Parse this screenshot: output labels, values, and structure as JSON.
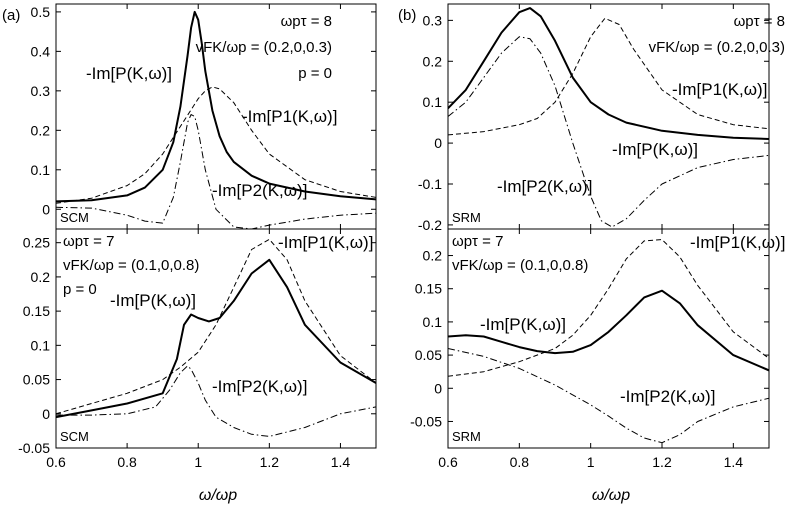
{
  "figure_labels": [
    "(a)",
    "(b)"
  ],
  "xlabel": "ω/ωp",
  "chart_data": [
    {
      "type": "line",
      "id": "a-top",
      "model": "SCM",
      "xlim": [
        0.6,
        1.5
      ],
      "ylim": [
        -0.05,
        0.52
      ],
      "xticks": [
        0.6,
        0.8,
        1,
        1.2,
        1.4
      ],
      "xtick_labels": [
        "",
        "",
        "",
        "",
        ""
      ],
      "yticks": [
        0,
        0.1,
        0.2,
        0.3,
        0.4,
        0.5
      ],
      "ytick_labels": [
        "0",
        "0.1",
        "0.2",
        "0.3",
        "0.4",
        "0.5"
      ],
      "params": [
        "ωpτ = 8",
        "vFK/ωp = (0.2,0,0.3)",
        "p = 0"
      ],
      "series": [
        {
          "name": "-Im[P(K,ω)]",
          "style": "solid",
          "x": [
            0.6,
            0.7,
            0.8,
            0.85,
            0.9,
            0.93,
            0.95,
            0.97,
            0.98,
            0.99,
            1.0,
            1.01,
            1.02,
            1.04,
            1.06,
            1.08,
            1.1,
            1.15,
            1.2,
            1.3,
            1.4,
            1.5
          ],
          "y": [
            0.02,
            0.023,
            0.035,
            0.055,
            0.1,
            0.17,
            0.26,
            0.39,
            0.46,
            0.5,
            0.48,
            0.42,
            0.35,
            0.25,
            0.185,
            0.145,
            0.12,
            0.085,
            0.065,
            0.045,
            0.033,
            0.025
          ]
        },
        {
          "name": "-Im[P1(K,ω)]",
          "style": "dashed",
          "x": [
            0.6,
            0.7,
            0.8,
            0.85,
            0.9,
            0.95,
            1.0,
            1.02,
            1.04,
            1.06,
            1.1,
            1.15,
            1.2,
            1.3,
            1.4,
            1.5
          ],
          "y": [
            0.015,
            0.028,
            0.06,
            0.09,
            0.14,
            0.21,
            0.28,
            0.3,
            0.31,
            0.305,
            0.27,
            0.2,
            0.14,
            0.075,
            0.045,
            0.03
          ]
        },
        {
          "name": "-Im[P2(K,ω)]",
          "style": "dashdot",
          "x": [
            0.6,
            0.7,
            0.8,
            0.85,
            0.9,
            0.93,
            0.95,
            0.97,
            0.98,
            0.99,
            1.0,
            1.02,
            1.05,
            1.1,
            1.15,
            1.2,
            1.3,
            1.4,
            1.5
          ],
          "y": [
            0.005,
            0.003,
            -0.015,
            -0.03,
            -0.035,
            0.03,
            0.12,
            0.22,
            0.24,
            0.235,
            0.2,
            0.1,
            0.0,
            -0.045,
            -0.05,
            -0.04,
            -0.025,
            -0.015,
            -0.01
          ]
        }
      ],
      "annotations": [
        "-Im[P(K,ω)]",
        "-Im[P1(K,ω)]",
        "-Im[P2(K,ω)]"
      ]
    },
    {
      "type": "line",
      "id": "a-bottom",
      "model": "SCM",
      "xlim": [
        0.6,
        1.5
      ],
      "ylim": [
        -0.05,
        0.27
      ],
      "xticks": [
        0.6,
        0.8,
        1,
        1.2,
        1.4
      ],
      "xtick_labels": [
        "0.6",
        "0.8",
        "1",
        "1.2",
        "1.4"
      ],
      "yticks": [
        -0.05,
        0,
        0.05,
        0.1,
        0.15,
        0.2,
        0.25
      ],
      "ytick_labels": [
        "-0.05",
        "0",
        "0.05",
        "0.1",
        "0.15",
        "0.2",
        "0.25"
      ],
      "params": [
        "ωpτ = 7",
        "vFK/ωp = (0.1,0,0.8)",
        "p = 0"
      ],
      "series": [
        {
          "name": "-Im[P(K,ω)]",
          "style": "solid",
          "x": [
            0.6,
            0.7,
            0.8,
            0.9,
            0.94,
            0.96,
            0.98,
            1.0,
            1.03,
            1.06,
            1.1,
            1.15,
            1.2,
            1.25,
            1.3,
            1.4,
            1.5
          ],
          "y": [
            -0.005,
            0.005,
            0.015,
            0.03,
            0.08,
            0.13,
            0.145,
            0.14,
            0.135,
            0.14,
            0.165,
            0.205,
            0.225,
            0.185,
            0.13,
            0.075,
            0.045
          ]
        },
        {
          "name": "-Im[P1(K,ω)]",
          "style": "dashed",
          "x": [
            0.6,
            0.7,
            0.8,
            0.9,
            0.95,
            1.0,
            1.05,
            1.1,
            1.15,
            1.2,
            1.25,
            1.3,
            1.4,
            1.5
          ],
          "y": [
            0.0,
            0.015,
            0.03,
            0.05,
            0.068,
            0.09,
            0.13,
            0.185,
            0.24,
            0.255,
            0.225,
            0.165,
            0.085,
            0.045
          ]
        },
        {
          "name": "-Im[P2(K,ω)]",
          "style": "dashdot",
          "x": [
            0.6,
            0.7,
            0.8,
            0.88,
            0.92,
            0.95,
            0.97,
            0.98,
            1.0,
            1.02,
            1.05,
            1.1,
            1.15,
            1.2,
            1.3,
            1.4,
            1.5
          ],
          "y": [
            -0.002,
            -0.002,
            0.0,
            0.01,
            0.035,
            0.06,
            0.07,
            0.065,
            0.045,
            0.02,
            -0.005,
            -0.02,
            -0.03,
            -0.033,
            -0.02,
            0.0,
            0.01
          ]
        }
      ],
      "annotations": [
        "-Im[P(K,ω)]",
        "-Im[P1(K,ω)]",
        "-Im[P2(K,ω)]"
      ]
    },
    {
      "type": "line",
      "id": "b-top",
      "model": "SRM",
      "xlim": [
        0.6,
        1.5
      ],
      "ylim": [
        -0.21,
        0.34
      ],
      "xticks": [
        0.6,
        0.8,
        1,
        1.2,
        1.4
      ],
      "xtick_labels": [
        "",
        "",
        "",
        "",
        ""
      ],
      "yticks": [
        -0.2,
        -0.1,
        0,
        0.1,
        0.2,
        0.3
      ],
      "ytick_labels": [
        "-0.2",
        "-0.1",
        "0",
        "0.1",
        "0.2",
        "0.3"
      ],
      "params": [
        "ωpτ = 8",
        "vFK/ωp = (0.2,0,0.3)"
      ],
      "series": [
        {
          "name": "-Im[P(K,ω)]",
          "style": "solid",
          "x": [
            0.6,
            0.65,
            0.7,
            0.75,
            0.8,
            0.83,
            0.86,
            0.9,
            0.95,
            1.0,
            1.05,
            1.1,
            1.2,
            1.3,
            1.4,
            1.5
          ],
          "y": [
            0.085,
            0.13,
            0.2,
            0.27,
            0.32,
            0.33,
            0.31,
            0.25,
            0.16,
            0.1,
            0.07,
            0.05,
            0.03,
            0.02,
            0.013,
            0.01
          ]
        },
        {
          "name": "-Im[P1(K,ω)]",
          "style": "dashed",
          "x": [
            0.6,
            0.7,
            0.8,
            0.85,
            0.9,
            0.95,
            1.0,
            1.04,
            1.08,
            1.12,
            1.2,
            1.3,
            1.4,
            1.5
          ],
          "y": [
            0.02,
            0.028,
            0.045,
            0.06,
            0.1,
            0.17,
            0.26,
            0.305,
            0.29,
            0.23,
            0.13,
            0.07,
            0.045,
            0.035
          ]
        },
        {
          "name": "-Im[P2(K,ω)]",
          "style": "dashdot",
          "x": [
            0.6,
            0.65,
            0.7,
            0.75,
            0.8,
            0.83,
            0.86,
            0.9,
            0.95,
            1.0,
            1.03,
            1.06,
            1.1,
            1.15,
            1.2,
            1.3,
            1.4,
            1.5
          ],
          "y": [
            0.065,
            0.1,
            0.16,
            0.22,
            0.26,
            0.255,
            0.22,
            0.14,
            0.0,
            -0.13,
            -0.19,
            -0.205,
            -0.185,
            -0.14,
            -0.1,
            -0.06,
            -0.04,
            -0.03
          ]
        }
      ],
      "annotations": [
        "-Im[P(K,ω)]",
        "-Im[P1(K,ω)]",
        "-Im[P2(K,ω)]"
      ]
    },
    {
      "type": "line",
      "id": "b-bottom",
      "model": "SRM",
      "xlim": [
        0.6,
        1.5
      ],
      "ylim": [
        -0.09,
        0.24
      ],
      "xticks": [
        0.6,
        0.8,
        1,
        1.2,
        1.4
      ],
      "xtick_labels": [
        "0.6",
        "0.8",
        "1",
        "1.2",
        "1.4"
      ],
      "yticks": [
        -0.05,
        0,
        0.05,
        0.1,
        0.15,
        0.2
      ],
      "ytick_labels": [
        "-0.05",
        "0",
        "0.05",
        "0.1",
        "0.15",
        "0.2"
      ],
      "params": [
        "ωpτ = 7",
        "vFK/ωp = (0.1,0,0.8)"
      ],
      "series": [
        {
          "name": "-Im[P(K,ω)]",
          "style": "solid",
          "x": [
            0.6,
            0.65,
            0.7,
            0.75,
            0.8,
            0.85,
            0.9,
            0.95,
            1.0,
            1.05,
            1.1,
            1.15,
            1.2,
            1.25,
            1.3,
            1.4,
            1.5
          ],
          "y": [
            0.078,
            0.08,
            0.078,
            0.07,
            0.062,
            0.056,
            0.053,
            0.055,
            0.065,
            0.085,
            0.11,
            0.137,
            0.147,
            0.128,
            0.095,
            0.05,
            0.027
          ]
        },
        {
          "name": "-Im[P1(K,ω)]",
          "style": "dashed",
          "x": [
            0.6,
            0.7,
            0.8,
            0.9,
            0.95,
            1.0,
            1.05,
            1.1,
            1.15,
            1.2,
            1.25,
            1.3,
            1.4,
            1.5
          ],
          "y": [
            0.018,
            0.025,
            0.04,
            0.06,
            0.08,
            0.11,
            0.15,
            0.195,
            0.222,
            0.224,
            0.198,
            0.155,
            0.085,
            0.045
          ]
        },
        {
          "name": "-Im[P2(K,ω)]",
          "style": "dashdot",
          "x": [
            0.6,
            0.7,
            0.8,
            0.9,
            1.0,
            1.05,
            1.1,
            1.15,
            1.2,
            1.25,
            1.3,
            1.4,
            1.5
          ],
          "y": [
            0.06,
            0.048,
            0.03,
            0.005,
            -0.025,
            -0.042,
            -0.06,
            -0.075,
            -0.082,
            -0.07,
            -0.05,
            -0.028,
            -0.015
          ]
        }
      ],
      "annotations": [
        "-Im[P(K,ω)]",
        "-Im[P1(K,ω)]",
        "-Im[P2(K,ω)]"
      ]
    }
  ]
}
